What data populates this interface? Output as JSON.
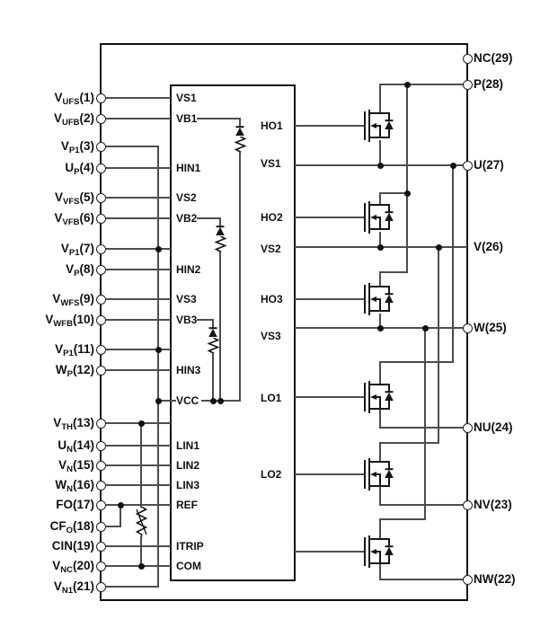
{
  "diagram": {
    "colors": {
      "background": "#ffffff",
      "wire": "#4d4d4d",
      "line": "#161616"
    },
    "left_pins": [
      {
        "main": "V",
        "sub": "UFS",
        "tail": "(1)"
      },
      {
        "main": "V",
        "sub": "UFB",
        "tail": "(2)"
      },
      {
        "main": "V",
        "sub": "P1",
        "tail": "(3)"
      },
      {
        "main": "U",
        "sub": "P",
        "tail": "(4)"
      },
      {
        "main": "V",
        "sub": "VFS",
        "tail": "(5)"
      },
      {
        "main": "V",
        "sub": "VFB",
        "tail": "(6)"
      },
      {
        "main": "V",
        "sub": "P1",
        "tail": "(7)"
      },
      {
        "main": "V",
        "sub": "P",
        "tail": "(8)"
      },
      {
        "main": "V",
        "sub": "WFS",
        "tail": "(9)"
      },
      {
        "main": "V",
        "sub": "WFB",
        "tail": "(10)"
      },
      {
        "main": "V",
        "sub": "P1",
        "tail": "(11)"
      },
      {
        "main": "W",
        "sub": "P",
        "tail": "(12)"
      },
      {
        "main": "V",
        "sub": "TH",
        "tail": "(13)"
      },
      {
        "main": "U",
        "sub": "N",
        "tail": "(14)"
      },
      {
        "main": "V",
        "sub": "N",
        "tail": "(15)"
      },
      {
        "main": "W",
        "sub": "N",
        "tail": "(16)"
      },
      {
        "main": "FO",
        "sub": "",
        "tail": "(17)"
      },
      {
        "main": "CF",
        "sub": "O",
        "tail": "(18)"
      },
      {
        "main": "CIN",
        "sub": "",
        "tail": "(19)"
      },
      {
        "main": "V",
        "sub": "NC",
        "tail": "(20)"
      },
      {
        "main": "V",
        "sub": "N1",
        "tail": "(21)"
      }
    ],
    "right_pins": [
      {
        "label": "NC(29)"
      },
      {
        "label": "P(28)"
      },
      {
        "label": "U(27)"
      },
      {
        "label": "V(26)"
      },
      {
        "label": "W(25)"
      },
      {
        "label": "NU(24)"
      },
      {
        "label": "NV(23)"
      },
      {
        "label": "NW(22)"
      }
    ],
    "ic_block": {
      "left_labels": [
        "VS1",
        "VB1",
        "HIN1",
        "VS2",
        "VB2",
        "HIN2",
        "VS3",
        "VB3",
        "HIN3",
        "VCC",
        "LIN1",
        "LIN2",
        "LIN3",
        "REF",
        "ITRIP",
        "COM"
      ],
      "right_labels": [
        "HO1",
        "VS1",
        "HO2",
        "VS2",
        "HO3",
        "VS3",
        "LO1",
        "LO2"
      ]
    },
    "icons": {
      "mosfet": "n-channel MOSFET with body diode",
      "diode": "bootstrap diode (pointing up)",
      "resistor": "zigzag resistor",
      "thermistor": "zigzag resistor with diagonal stroke",
      "junction-dot": "filled circle wire junction",
      "pin-circle": "open circle package pin"
    }
  }
}
